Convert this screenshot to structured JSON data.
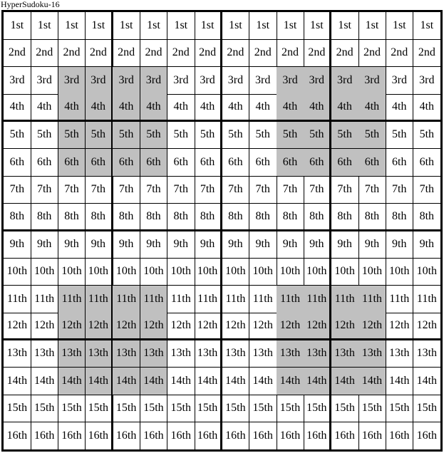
{
  "title": "HyperSudoku-16",
  "grid": {
    "size": 16,
    "box_size": 4,
    "shade_color": "#c0c0c0",
    "shaded_rows": [
      3,
      4,
      5,
      6,
      11,
      12,
      13,
      14
    ],
    "shaded_cols": [
      3,
      4,
      5,
      6,
      11,
      12,
      13,
      14
    ],
    "row_labels": [
      "1st",
      "2nd",
      "3rd",
      "4th",
      "5th",
      "6th",
      "7th",
      "8th",
      "9th",
      "10th",
      "11th",
      "12th",
      "13th",
      "14th",
      "15th",
      "16th"
    ]
  }
}
